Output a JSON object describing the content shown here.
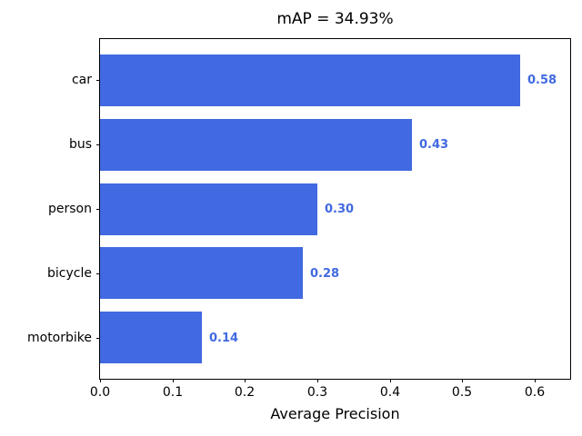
{
  "chart_data": {
    "type": "bar",
    "orientation": "horizontal",
    "title": "mAP = 34.93%",
    "xlabel": "Average Precision",
    "ylabel": "",
    "categories": [
      "car",
      "bus",
      "person",
      "bicycle",
      "motorbike"
    ],
    "values": [
      0.58,
      0.43,
      0.3,
      0.28,
      0.14
    ],
    "value_labels": [
      "0.58",
      "0.43",
      "0.30",
      "0.28",
      "0.14"
    ],
    "x_ticks": [
      0.0,
      0.1,
      0.2,
      0.3,
      0.4,
      0.5,
      0.6
    ],
    "x_tick_labels": [
      "0.0",
      "0.1",
      "0.2",
      "0.3",
      "0.4",
      "0.5",
      "0.6"
    ],
    "xlim": [
      0,
      0.649
    ],
    "grid": false,
    "legend": "none",
    "bar_color": "#4169e1",
    "value_label_color": "#4169e1",
    "axis_color": "#000000",
    "background_color": "#ffffff"
  }
}
